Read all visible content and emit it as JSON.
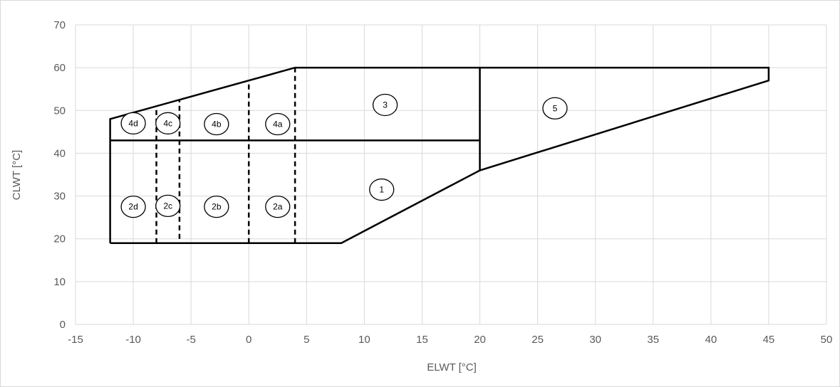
{
  "chart_data": {
    "type": "line",
    "title": "",
    "xlabel": "ELWT [°C]",
    "ylabel": "CLWT [°C]",
    "xlim": [
      -15,
      50
    ],
    "ylim": [
      0,
      70
    ],
    "x_ticks": [
      -15,
      -10,
      -5,
      0,
      5,
      10,
      15,
      20,
      25,
      30,
      35,
      40,
      45,
      50
    ],
    "y_ticks": [
      0,
      10,
      20,
      30,
      40,
      50,
      60,
      70
    ],
    "grid": true,
    "legend": "none",
    "boundary_lines": [
      {
        "style": "solid",
        "points": [
          [
            -12,
            19
          ],
          [
            8,
            19
          ],
          [
            20,
            36
          ],
          [
            45,
            57
          ],
          [
            45,
            60
          ],
          [
            4,
            60
          ],
          [
            -12,
            48
          ],
          [
            -12,
            19
          ]
        ]
      },
      {
        "style": "solid",
        "points": [
          [
            -12,
            43
          ],
          [
            20,
            43
          ]
        ]
      },
      {
        "style": "solid",
        "points": [
          [
            20,
            36
          ],
          [
            20,
            60
          ]
        ]
      },
      {
        "style": "dashed",
        "points": [
          [
            4,
            19
          ],
          [
            4,
            60
          ]
        ]
      },
      {
        "style": "dashed",
        "points": [
          [
            0,
            19
          ],
          [
            0,
            57
          ]
        ]
      },
      {
        "style": "dashed",
        "points": [
          [
            -6,
            20
          ],
          [
            -6,
            52.5
          ]
        ]
      },
      {
        "style": "dashed",
        "points": [
          [
            -8,
            19
          ],
          [
            -8,
            51
          ]
        ]
      }
    ],
    "zones": [
      {
        "label": "1",
        "x": 11.5,
        "y": 31.5
      },
      {
        "label": "2a",
        "x": 2.5,
        "y": 27.5
      },
      {
        "label": "2b",
        "x": -2.8,
        "y": 27.5
      },
      {
        "label": "2c",
        "x": -7,
        "y": 27.7
      },
      {
        "label": "2d",
        "x": -10,
        "y": 27.5
      },
      {
        "label": "3",
        "x": 11.8,
        "y": 51.3
      },
      {
        "label": "4a",
        "x": 2.5,
        "y": 46.8
      },
      {
        "label": "4b",
        "x": -2.8,
        "y": 46.8
      },
      {
        "label": "4c",
        "x": -7,
        "y": 47
      },
      {
        "label": "4d",
        "x": -10,
        "y": 47
      },
      {
        "label": "5",
        "x": 26.5,
        "y": 50.5
      }
    ]
  }
}
